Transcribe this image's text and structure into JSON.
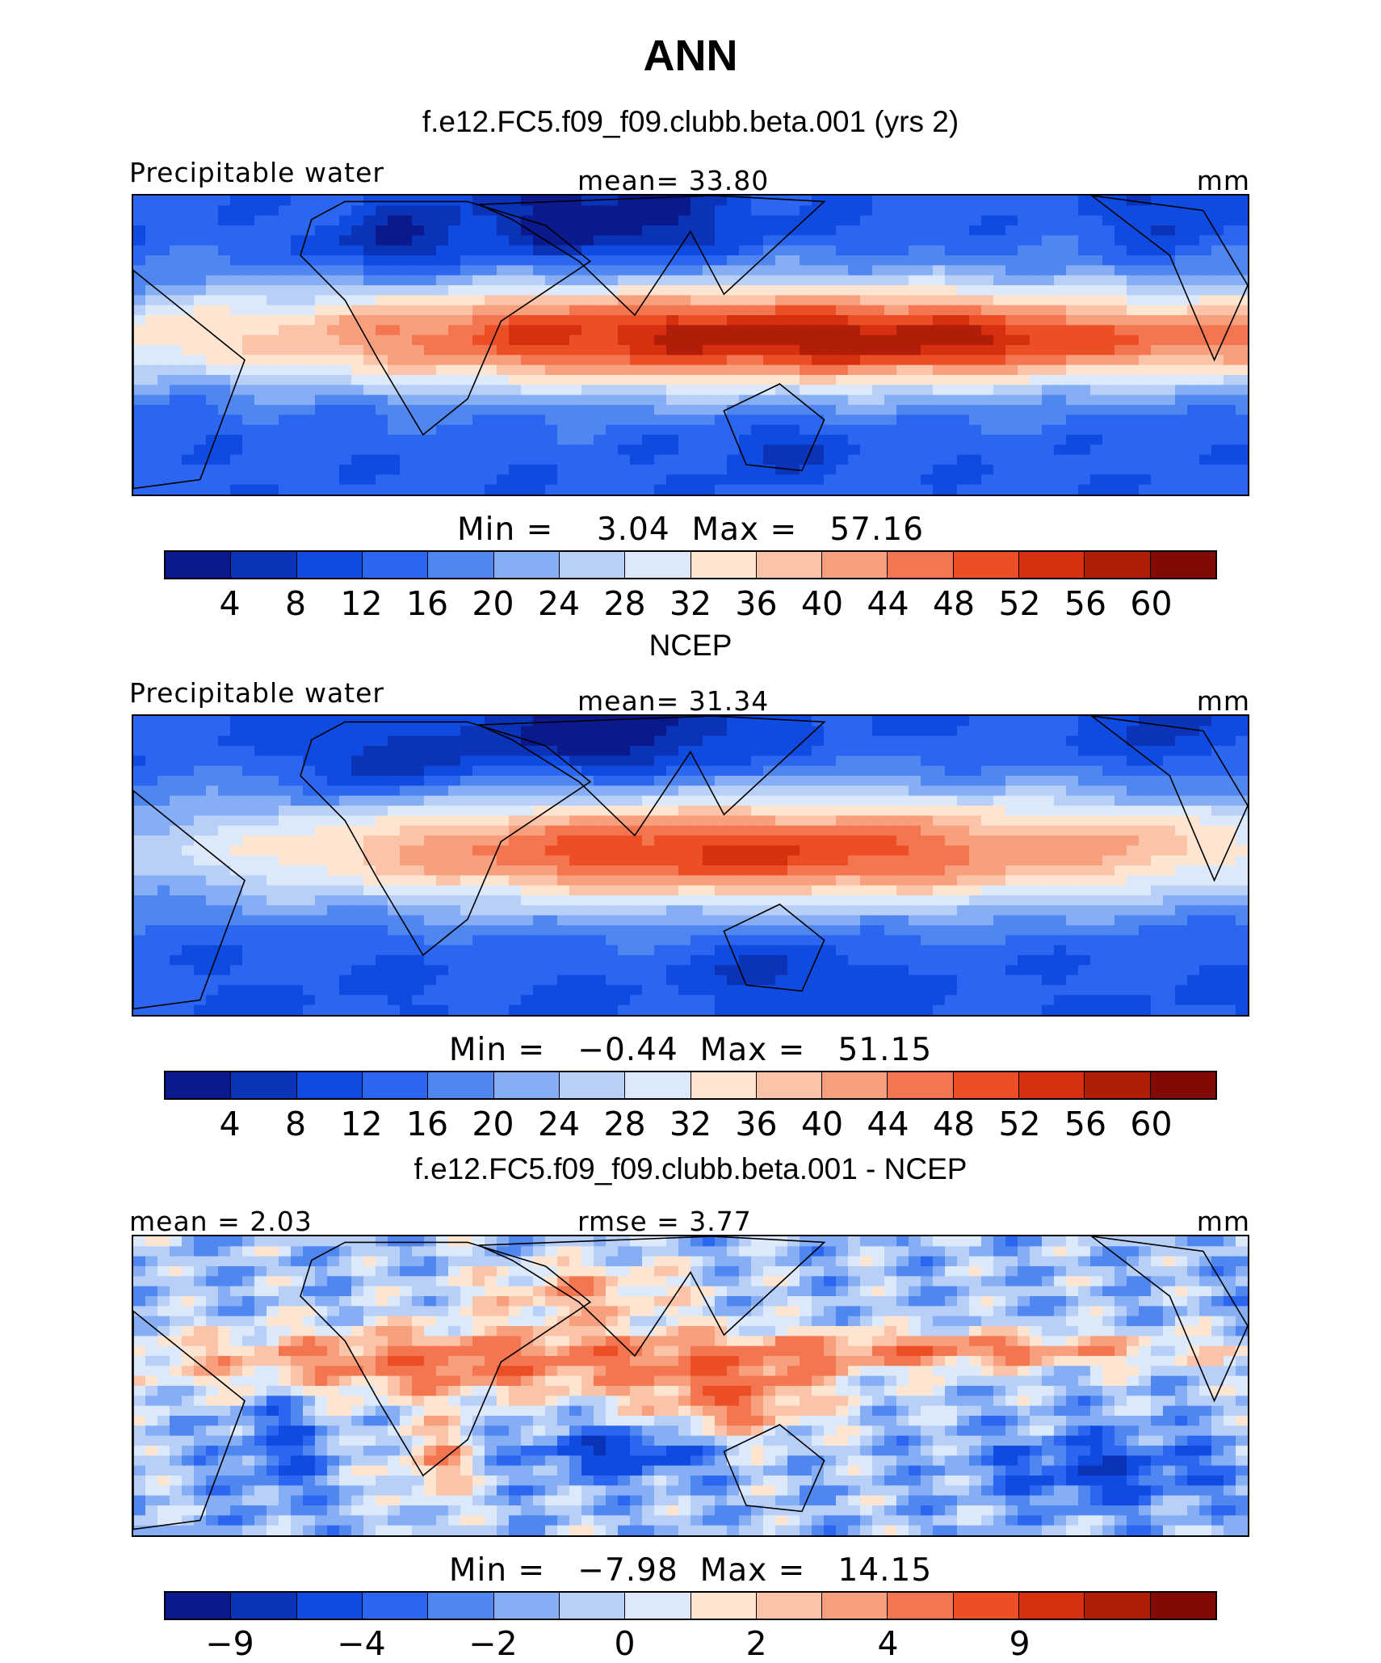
{
  "figure": {
    "title": "ANN",
    "palette": [
      "#0a1a8c",
      "#0b33b8",
      "#0f4be0",
      "#2a66f0",
      "#4f86f0",
      "#86aef4",
      "#b8d0f8",
      "#dce9fb",
      "#fde5d2",
      "#fbc4a8",
      "#f8a07d",
      "#f47650",
      "#ec4f25",
      "#d63010",
      "#b01e08",
      "#820a04"
    ],
    "panels": [
      {
        "title": "f.e12.FC5.f09_f09.clubb.beta.001 (yrs 2)",
        "left_label": "Precipitable water",
        "center_label": "mean=   33.80",
        "right_label": "mm",
        "min_max": "Min =    3.04  Max =   57.16",
        "field": "model",
        "colorbar": {
          "ticks": [
            "4",
            "8",
            "12",
            "16",
            "20",
            "24",
            "28",
            "32",
            "36",
            "40",
            "44",
            "48",
            "52",
            "56",
            "60"
          ]
        }
      },
      {
        "title": "NCEP",
        "left_label": "Precipitable water",
        "center_label": "mean=   31.34",
        "right_label": "mm",
        "min_max": "Min =   −0.44  Max =   51.15",
        "field": "obs",
        "colorbar": {
          "ticks": [
            "4",
            "8",
            "12",
            "16",
            "20",
            "24",
            "28",
            "32",
            "36",
            "40",
            "44",
            "48",
            "52",
            "56",
            "60"
          ]
        }
      },
      {
        "title": "f.e12.FC5.f09_f09.clubb.beta.001 - NCEP",
        "left_label": "mean =    2.03",
        "center_label": "rmse =    3.77",
        "right_label": "mm",
        "min_max": "Min =   −7.98  Max =   14.15",
        "field": "diff",
        "colorbar": {
          "ticks": [
            "−9",
            "",
            "−4",
            "",
            "−2",
            "",
            "0",
            "",
            "2",
            "",
            "4",
            "",
            "9",
            "",
            ""
          ]
        }
      }
    ]
  }
}
